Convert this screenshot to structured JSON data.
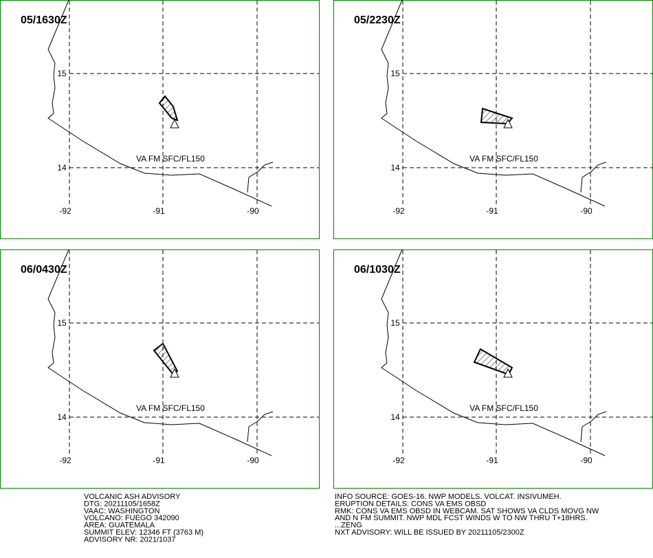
{
  "panels": [
    {
      "time": "05/1630Z",
      "label": "VA FM SFC/FL150"
    },
    {
      "time": "05/2230Z",
      "label": "VA FM SFC/FL150"
    },
    {
      "time": "06/0430Z",
      "label": "VA FM SFC/FL150"
    },
    {
      "time": "06/1030Z",
      "label": "VA FM SFC/FL150"
    }
  ],
  "lat_labels": [
    "15",
    "14"
  ],
  "lon_labels": [
    "-92",
    "-91",
    "-90"
  ],
  "advisory_left": [
    "VOLCANIC ASH ADVISORY",
    "DTG: 20211105/1658Z",
    "VAAC: WASHINGTON",
    "VOLCANO: FUEGO 342090",
    "AREA: GUATEMALA",
    "SUMMIT ELEV: 12346 FT (3763 M)",
    "ADVISORY NR: 2021/1037"
  ],
  "advisory_right": [
    "INFO SOURCE: GOES-16. NWP MODELS. VOLCAT. INSIVUMEH.",
    "ERUPTION DETAILS: CONS VA EMS OBSD",
    "RMK: CONS VA EMS OBSD IN WEBCAM. SAT SHOWS VA CLDS MOVG NW",
    "AND N FM SUMMIT. NWP MDL FCST WINDS W TO NW THRU T+18HRS.",
    "...ZENG",
    "NXT ADVISORY: WILL BE ISSUED BY 20211105/2300Z"
  ]
}
